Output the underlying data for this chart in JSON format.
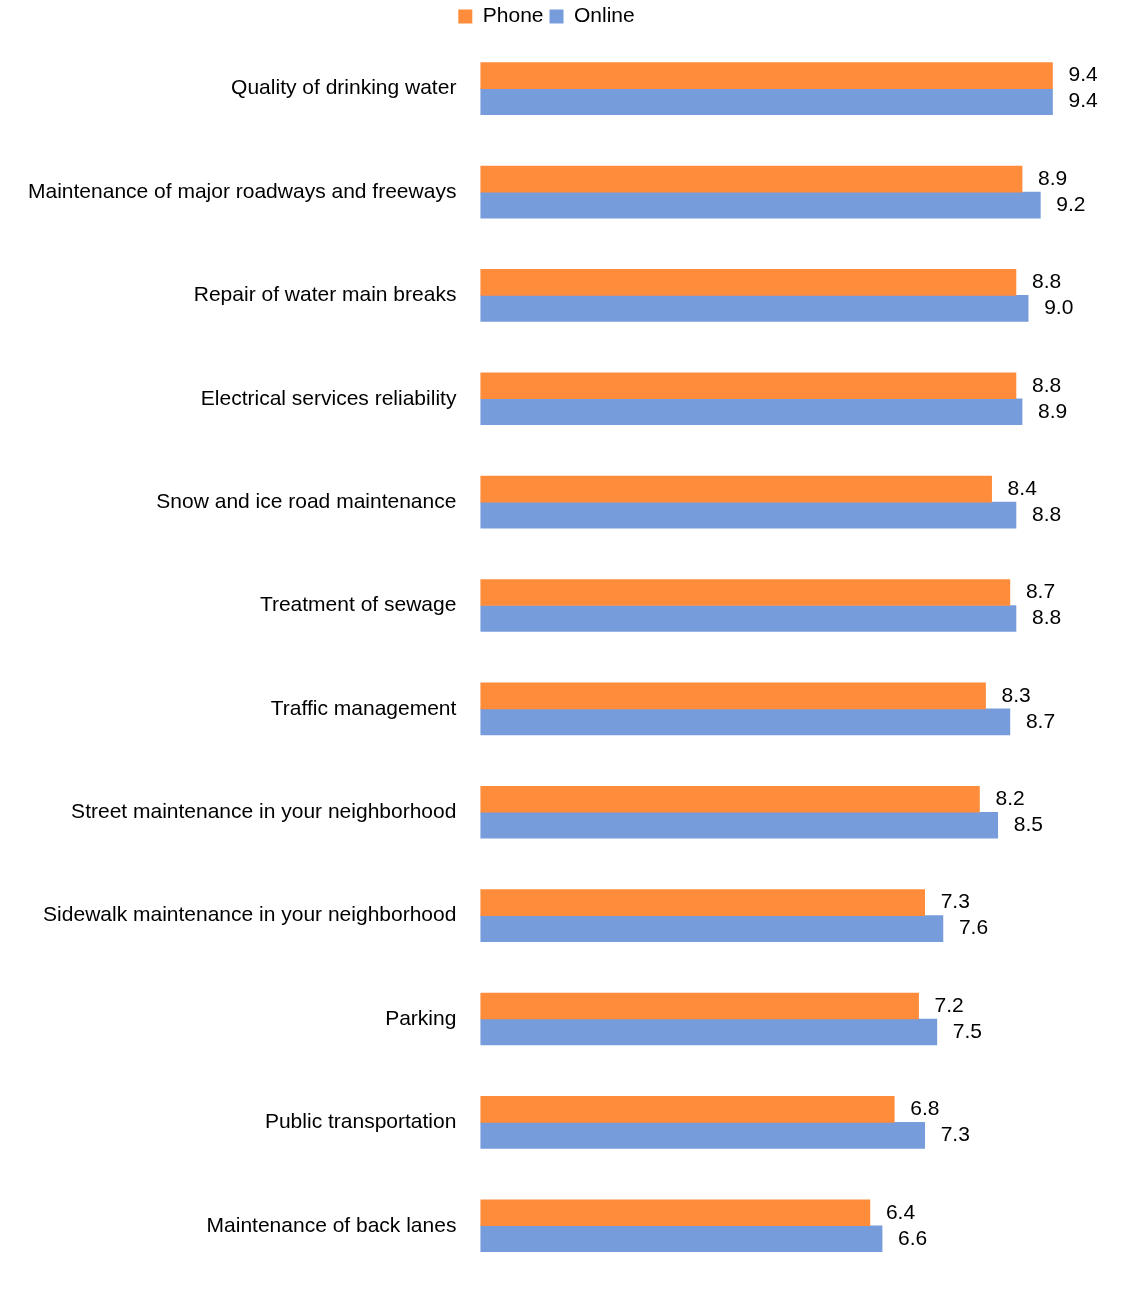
{
  "chart_data": {
    "type": "bar",
    "orientation": "horizontal",
    "categories": [
      "Quality of drinking water",
      "Maintenance of major roadways and freeways",
      "Repair of water main breaks",
      "Electrical services reliability",
      "Snow and ice road maintenance",
      "Treatment of sewage",
      "Traffic management",
      "Street maintenance in your neighborhood",
      "Sidewalk maintenance in your neighborhood",
      "Parking",
      "Public transportation",
      "Maintenance of back lanes"
    ],
    "series": [
      {
        "name": "Phone",
        "color": "#ff8c3a",
        "values": [
          9.4,
          8.9,
          8.8,
          8.8,
          8.4,
          8.7,
          8.3,
          8.2,
          7.3,
          7.2,
          6.8,
          6.4
        ],
        "value_labels": [
          "9.4",
          "8.9",
          "8.8",
          "8.8",
          "8.4",
          "8.7",
          "8.3",
          "8.2",
          "7.3",
          "7.2",
          "6.8",
          "6.4"
        ]
      },
      {
        "name": "Online",
        "color": "#769cdb",
        "values": [
          9.4,
          9.2,
          9.0,
          8.9,
          8.8,
          8.8,
          8.7,
          8.5,
          7.6,
          7.5,
          7.3,
          6.6
        ],
        "value_labels": [
          "9.4",
          "9.2",
          "9.0",
          "8.9",
          "8.8",
          "8.8",
          "8.7",
          "8.5",
          "7.6",
          "7.5",
          "7.3",
          "6.6"
        ]
      }
    ],
    "grid": false,
    "legend": "top",
    "tick_labels": "y"
  }
}
